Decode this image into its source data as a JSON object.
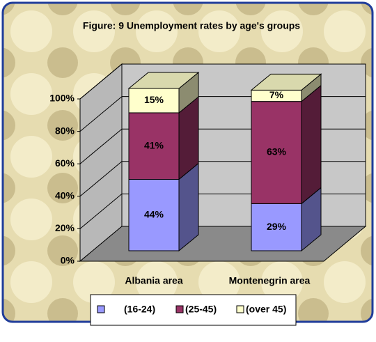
{
  "chart_data": {
    "type": "bar",
    "stacked": true,
    "title": "Figure: 9 Unemployment rates by age's groups",
    "categories": [
      "Albania area",
      "Montenegrin area"
    ],
    "series": [
      {
        "name": "(16-24)",
        "color": "#9999ff",
        "values": [
          44,
          29
        ],
        "value_labels": [
          "44%",
          "29%"
        ]
      },
      {
        "name": "(25-45)",
        "color": "#993366",
        "values": [
          41,
          63
        ],
        "value_labels": [
          "41%",
          "63%"
        ]
      },
      {
        "name": "(over 45)",
        "color": "#ffffcc",
        "values": [
          15,
          7
        ],
        "value_labels": [
          "15%",
          "7%"
        ]
      }
    ],
    "ylim": [
      0,
      100
    ],
    "yticks": [
      {
        "value": 0,
        "label": "0%"
      },
      {
        "value": 20,
        "label": "20%"
      },
      {
        "value": 40,
        "label": "40%"
      },
      {
        "value": 60,
        "label": "60%"
      },
      {
        "value": 80,
        "label": "80%"
      },
      {
        "value": 100,
        "label": "100%"
      }
    ],
    "grid": true,
    "legend": "bottom"
  }
}
